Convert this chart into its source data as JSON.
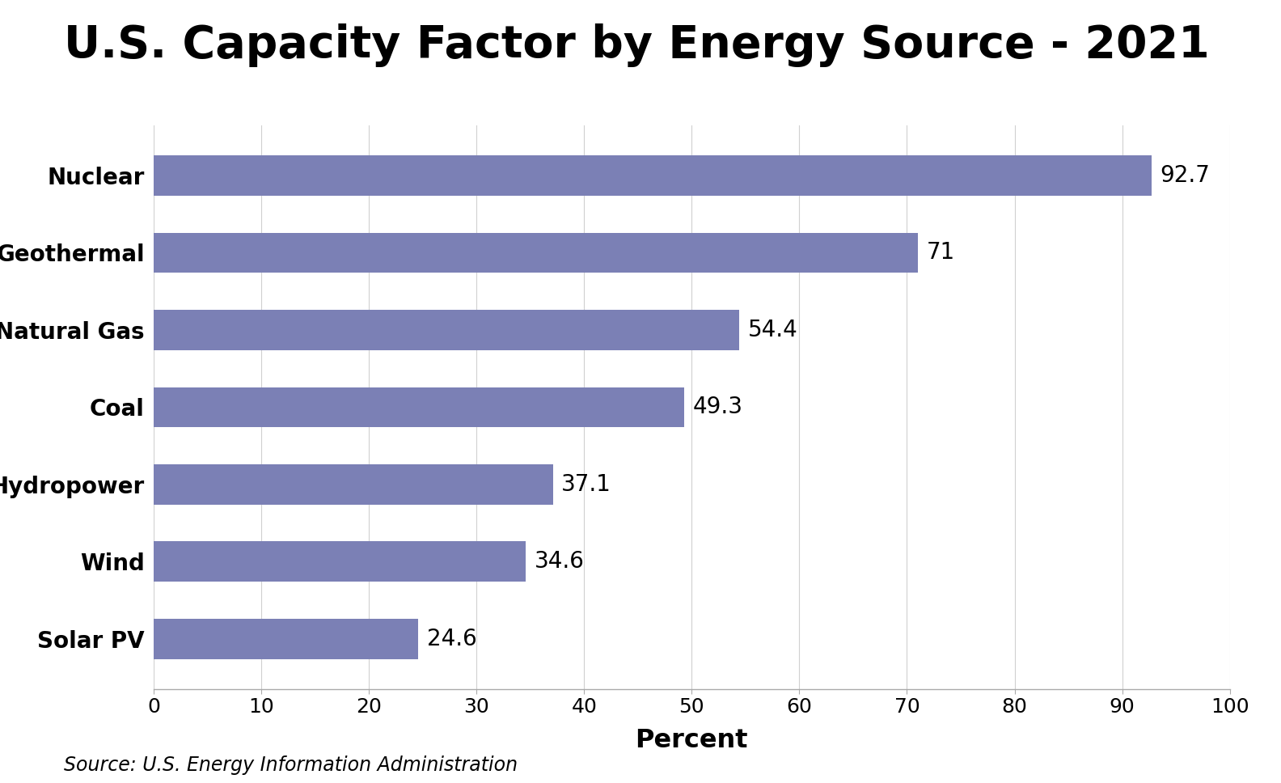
{
  "title": "U.S. Capacity Factor by Energy Source - 2021",
  "categories": [
    "Nuclear",
    "Geothermal",
    "Natural Gas",
    "Coal",
    "Hydropower",
    "Wind",
    "Solar PV"
  ],
  "values": [
    92.7,
    71.0,
    54.4,
    49.3,
    37.1,
    34.6,
    24.6
  ],
  "bar_color": "#7b80b5",
  "background_color": "#ffffff",
  "xlabel": "Percent",
  "xlim": [
    0,
    100
  ],
  "xticks": [
    0,
    10,
    20,
    30,
    40,
    50,
    60,
    70,
    80,
    90,
    100
  ],
  "title_fontsize": 40,
  "label_fontsize": 20,
  "tick_fontsize": 18,
  "value_fontsize": 20,
  "source_text": "Source: U.S. Energy Information Administration",
  "source_fontsize": 17,
  "bar_height": 0.52
}
